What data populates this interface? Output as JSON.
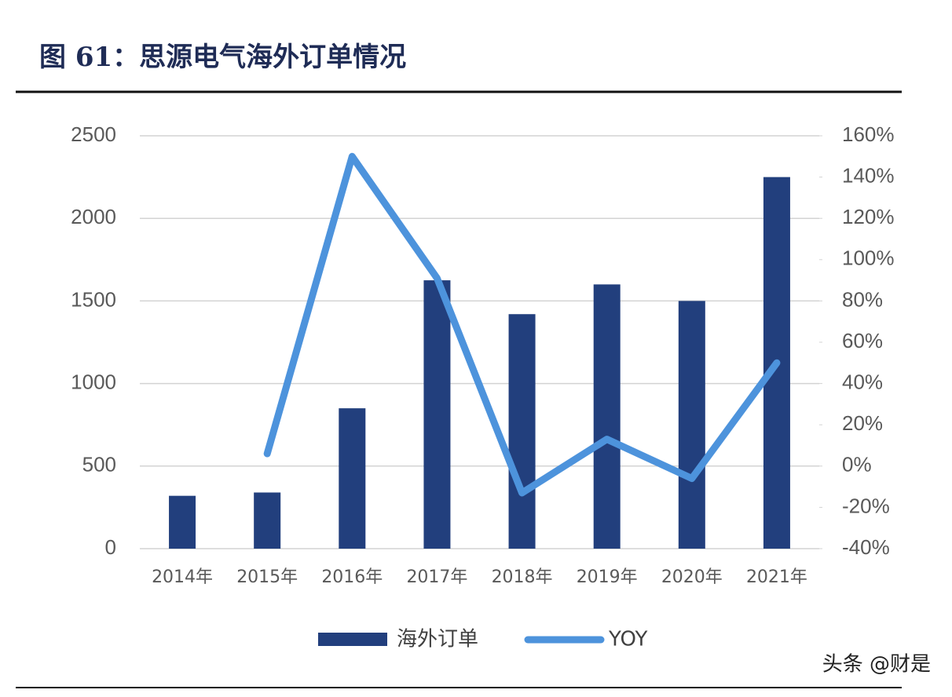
{
  "chart_data": {
    "type": "bar",
    "title": "图 61：思源电气海外订单情况",
    "categories": [
      "2014年",
      "2015年",
      "2016年",
      "2017年",
      "2018年",
      "2019年",
      "2020年",
      "2021年"
    ],
    "series": [
      {
        "name": "海外订单",
        "type": "bar",
        "color": "#223f7d",
        "values": [
          320,
          340,
          850,
          1625,
          1420,
          1600,
          1500,
          2250
        ]
      },
      {
        "name": "YOY",
        "type": "line",
        "axis": "y2",
        "color": "#4d93dc",
        "values": [
          null,
          6,
          150,
          91,
          -13,
          13,
          -6,
          50
        ]
      }
    ],
    "ylim": [
      0,
      2500
    ],
    "yticks": [
      0,
      500,
      1000,
      1500,
      2000,
      2500
    ],
    "y2lim": [
      -40,
      160
    ],
    "y2ticks": [
      {
        "value": -40,
        "label": "-40%"
      },
      {
        "value": -20,
        "label": "-20%"
      },
      {
        "value": 0,
        "label": "0%"
      },
      {
        "value": 20,
        "label": "20%"
      },
      {
        "value": 40,
        "label": "40%"
      },
      {
        "value": 60,
        "label": "60%"
      },
      {
        "value": 80,
        "label": "80%"
      },
      {
        "value": 100,
        "label": "100%"
      },
      {
        "value": 120,
        "label": "120%"
      },
      {
        "value": 140,
        "label": "140%"
      },
      {
        "value": 160,
        "label": "160%"
      }
    ],
    "grid": true,
    "legend": "bottom"
  },
  "watermark": "头条 @财是"
}
